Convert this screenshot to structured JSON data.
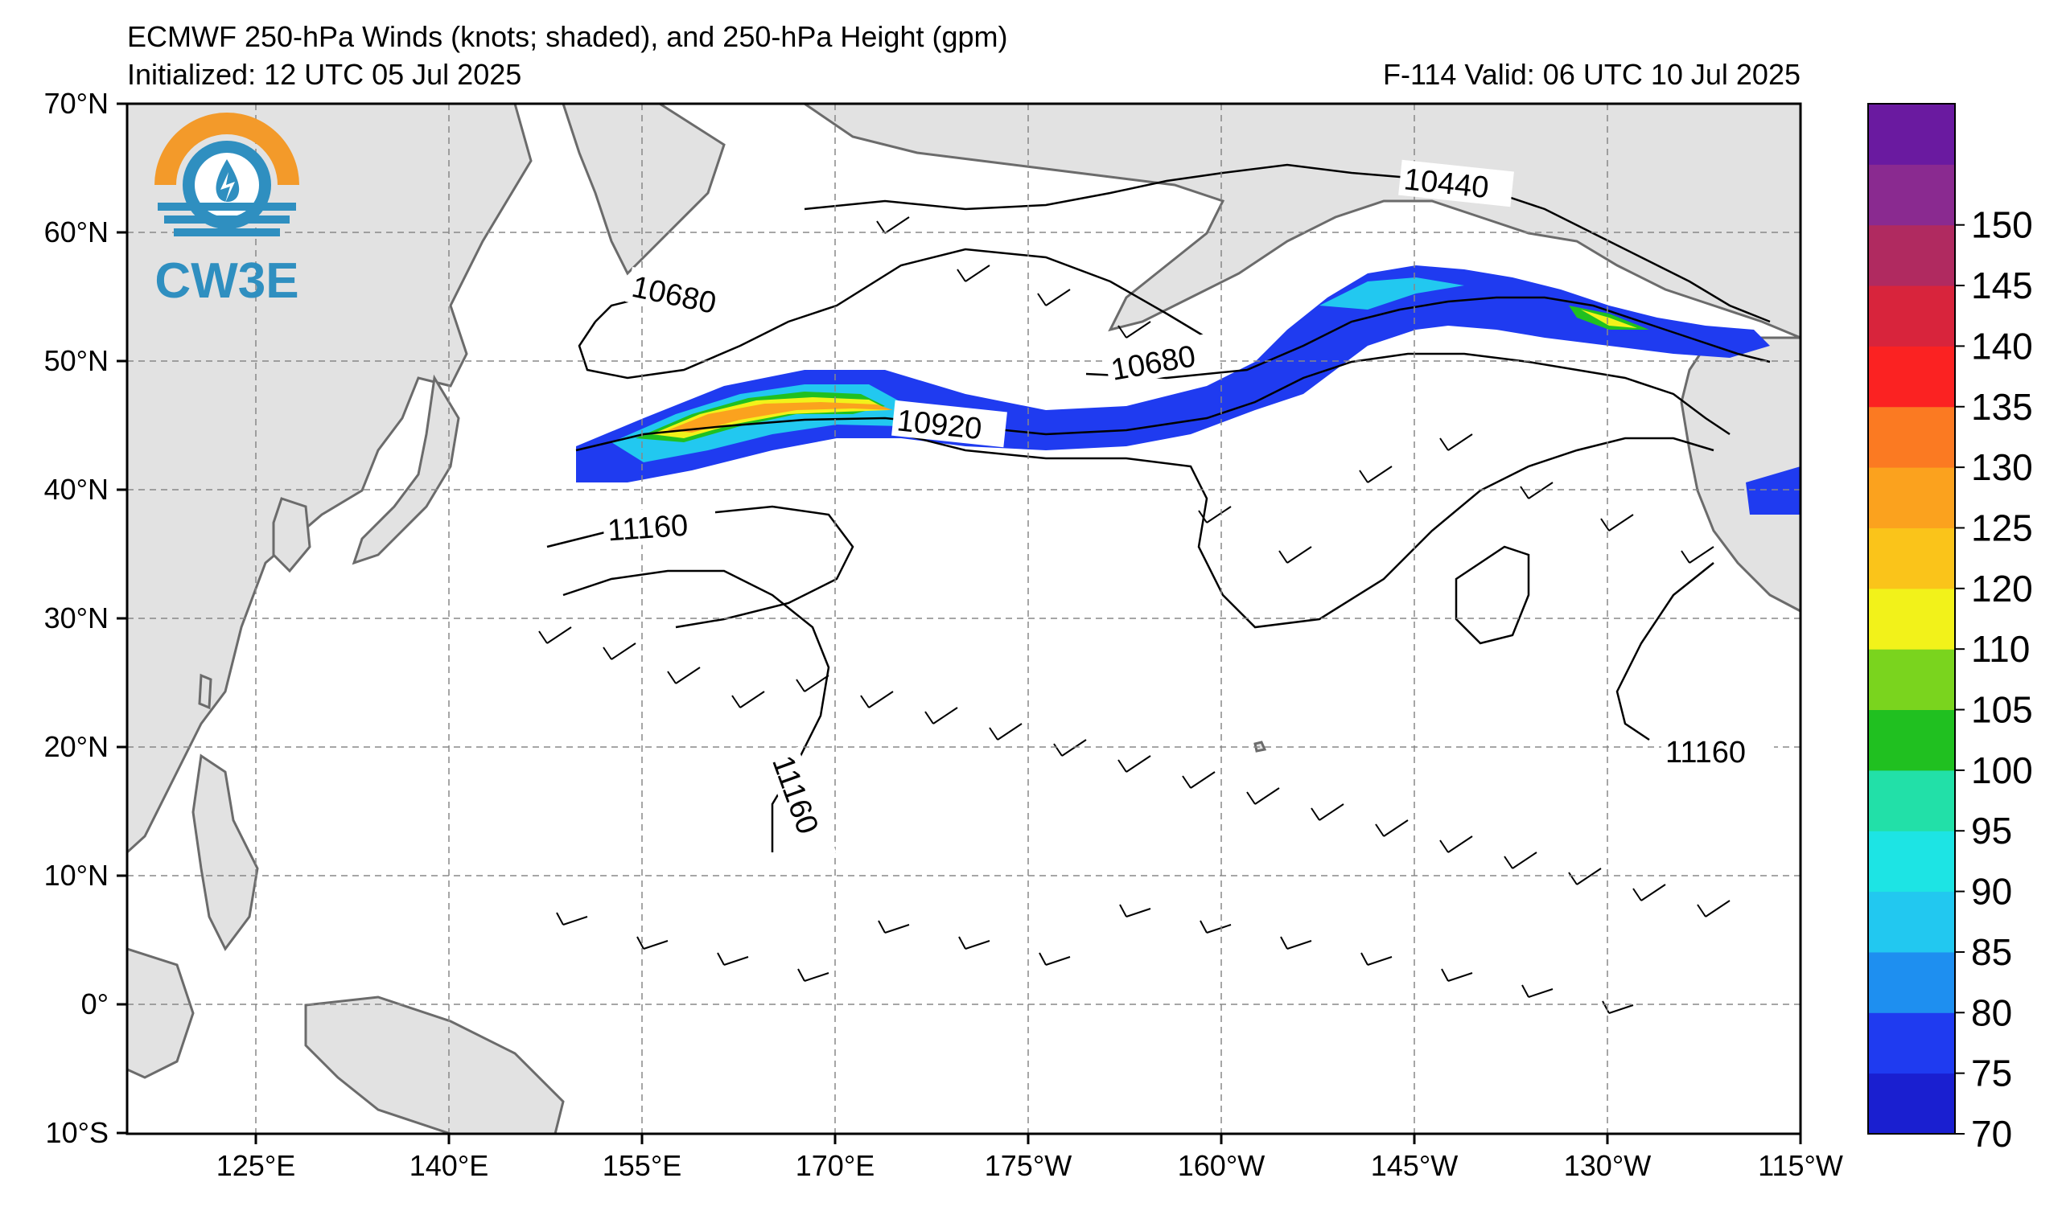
{
  "header": {
    "title": "ECMWF 250-hPa Winds (knots; shaded), and 250-hPa Height (gpm)",
    "initialized": "Initialized: 12 UTC 05 Jul 2025",
    "valid": "F-114  Valid: 06 UTC 10 Jul 2025"
  },
  "logo": {
    "text": "CW3E",
    "color": "#2f8fc0",
    "accent": "#f39a2a"
  },
  "map": {
    "lat_labels": [
      "70°N",
      "60°N",
      "50°N",
      "40°N",
      "30°N",
      "20°N",
      "10°N",
      "0°",
      "10°S"
    ],
    "lon_labels": [
      "125°E",
      "140°E",
      "155°E",
      "170°E",
      "175°W",
      "160°W",
      "145°W",
      "130°W",
      "115°W"
    ],
    "contour_labels": [
      "10440",
      "10680",
      "10680",
      "10920",
      "11160",
      "11160",
      "11160"
    ],
    "land_color": "#e2e2e2",
    "coast_color": "#6b6b6b",
    "ocean_color": "#ffffff"
  },
  "colorbar": {
    "labels": [
      "70",
      "75",
      "80",
      "85",
      "90",
      "95",
      "100",
      "105",
      "110",
      "120",
      "125",
      "130",
      "135",
      "140",
      "145",
      "150"
    ],
    "colors": [
      "#1a1fd0",
      "#1f3bf0",
      "#1e8ff0",
      "#22c8f0",
      "#1de4e4",
      "#22e0a8",
      "#20c020",
      "#7ad41e",
      "#f2f21a",
      "#fac41a",
      "#fba21e",
      "#fb7a22",
      "#fb2222",
      "#d8243c",
      "#b02a60",
      "#8a2a90",
      "#6a1aa0"
    ]
  }
}
